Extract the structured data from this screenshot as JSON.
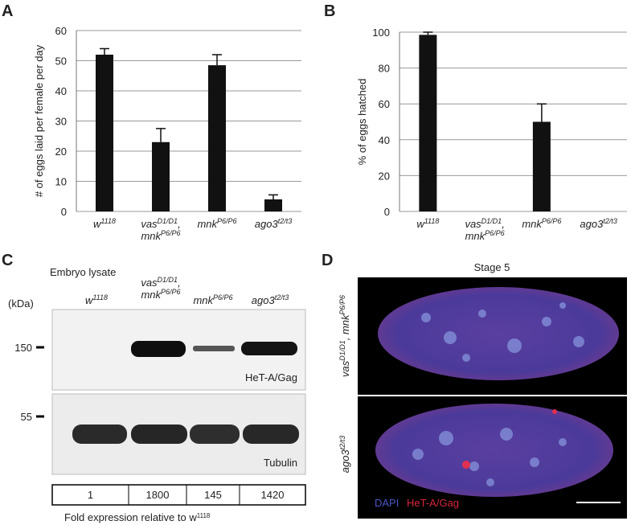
{
  "chart_data": [
    {
      "type": "bar",
      "panel_label": "A",
      "ylabel": "# of eggs laid  per female per day",
      "categories": [
        [
          [
            "w",
            "1118"
          ]
        ],
        [
          [
            "vas",
            "D1/D1",
            ","
          ],
          [
            "mnk",
            "P6/P6"
          ]
        ],
        [
          [
            "mnk",
            "P6/P6"
          ]
        ],
        [
          [
            "ago3",
            "t2/t3"
          ]
        ]
      ],
      "values": [
        52,
        23,
        48.5,
        4
      ],
      "errors": [
        2,
        4.5,
        3.5,
        1.5
      ],
      "color": "#111111",
      "ylim": [
        0,
        60
      ],
      "yticks": [
        0,
        10,
        20,
        30,
        40,
        50,
        60
      ],
      "grid": true
    },
    {
      "type": "bar",
      "panel_label": "B",
      "ylabel": "% of eggs hatched",
      "categories": [
        [
          [
            "w",
            "1118"
          ]
        ],
        [
          [
            "vas",
            "D1/D1",
            ","
          ],
          [
            "mnk",
            "P6/P6"
          ]
        ],
        [
          [
            "mnk",
            "P6/P6"
          ]
        ],
        [
          [
            "ago3",
            "t2/t3"
          ]
        ]
      ],
      "values": [
        98.5,
        0,
        50,
        0
      ],
      "errors": [
        1.5,
        null,
        10,
        null
      ],
      "color": "#111111",
      "ylim": [
        0,
        100
      ],
      "yticks": [
        0,
        20,
        40,
        60,
        80,
        100
      ],
      "grid": true
    }
  ],
  "panel_c": {
    "label": "C",
    "title": "Embryo lysate",
    "unit": "(kDa)",
    "markers": [
      150,
      55
    ],
    "bands": [
      "HeT-A/Gag",
      "Tubulin"
    ],
    "fold_expression": [
      1,
      1800,
      145,
      1420
    ],
    "caption": [
      "Fold expression relative to w",
      "1118"
    ]
  },
  "panel_d": {
    "label": "D",
    "title": "Stage 5",
    "rows": [
      [
        [
          "vas",
          "D1/D1",
          ", mnk",
          "P6/P6"
        ]
      ],
      [
        [
          "ago3",
          "t2/t3"
        ]
      ]
    ],
    "legend": [
      "DAPI",
      "HeT-A/Gag"
    ]
  }
}
